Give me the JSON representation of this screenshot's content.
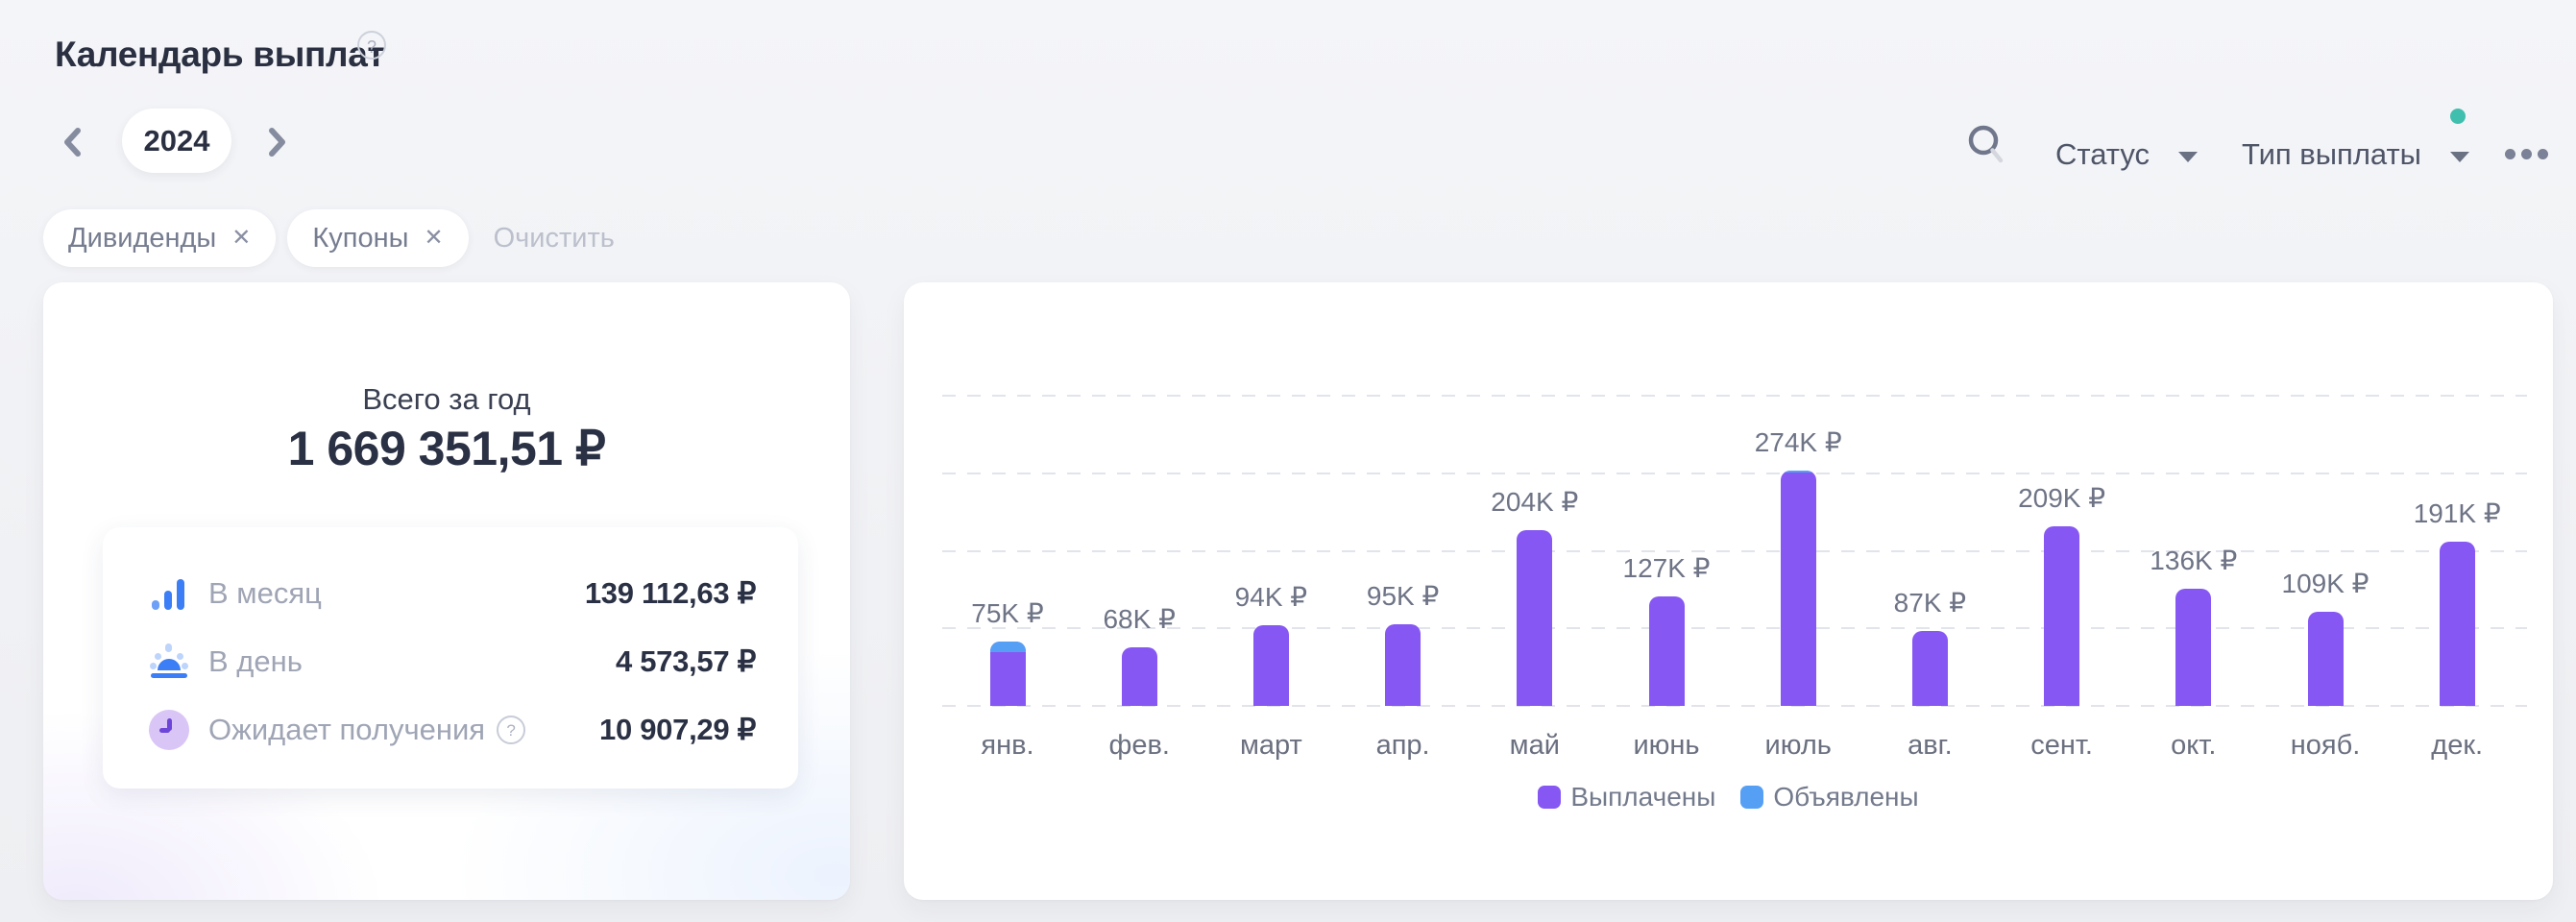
{
  "header": {
    "title": "Календарь выплат",
    "help_glyph": "?"
  },
  "year_nav": {
    "year": "2024"
  },
  "toolbar": {
    "status_label": "Статус",
    "type_label": "Тип выплаты",
    "active_filter_dot_color": "#41BFAE"
  },
  "filters": {
    "chips": [
      {
        "label": "Дивиденды",
        "close_glyph": "✕"
      },
      {
        "label": "Купоны",
        "close_glyph": "✕"
      }
    ],
    "clear_label": "Очистить"
  },
  "summary": {
    "title": "Всего за год",
    "total": "1 669 351,51 ₽",
    "rows": [
      {
        "icon": "bar-chart-icon",
        "label": "В месяц",
        "value": "139 112,63 ₽"
      },
      {
        "icon": "sunrise-icon",
        "label": "В день",
        "value": "4 573,57 ₽"
      },
      {
        "icon": "clock-icon",
        "label": "Ожидает получения",
        "help_glyph": "?",
        "value": "10 907,29 ₽"
      }
    ]
  },
  "chart_data": {
    "type": "bar",
    "stacked": true,
    "title": "",
    "xlabel": "",
    "ylabel": "",
    "currency": "₽",
    "categories": [
      "янв.",
      "фев.",
      "март",
      "апр.",
      "май",
      "июнь",
      "июль",
      "авг.",
      "сент.",
      "окт.",
      "нояб.",
      "дек."
    ],
    "series": [
      {
        "name": "Выплачены",
        "color": "#8657F3",
        "values_thousands": [
          63,
          68,
          94,
          95,
          204,
          127,
          272,
          87,
          209,
          136,
          109,
          191
        ]
      },
      {
        "name": "Объявлены",
        "color": "#55A0F5",
        "values_thousands": [
          12,
          0,
          0,
          0,
          0,
          0,
          2,
          0,
          0,
          0,
          0,
          0
        ]
      }
    ],
    "totals_thousands": [
      75,
      68,
      94,
      95,
      204,
      127,
      274,
      87,
      209,
      136,
      109,
      191
    ],
    "value_labels": [
      "75K ₽",
      "68K ₽",
      "94K ₽",
      "95K ₽",
      "204K ₽",
      "127K ₽",
      "274K ₽",
      "87K ₽",
      "209K ₽",
      "136K ₽",
      "109K ₽",
      "191K ₽"
    ],
    "ylim_thousands": [
      0,
      360
    ],
    "gridlines": "horizontal-dashed",
    "legend_position": "bottom-center"
  },
  "colors": {
    "paid_purple": "#8657F3",
    "announced_blue": "#55A0F5",
    "accent_teal": "#41BFAE",
    "text_dark": "#2B3144",
    "text_gray": "#9FA5B5",
    "grid": "#E1E4EB"
  }
}
